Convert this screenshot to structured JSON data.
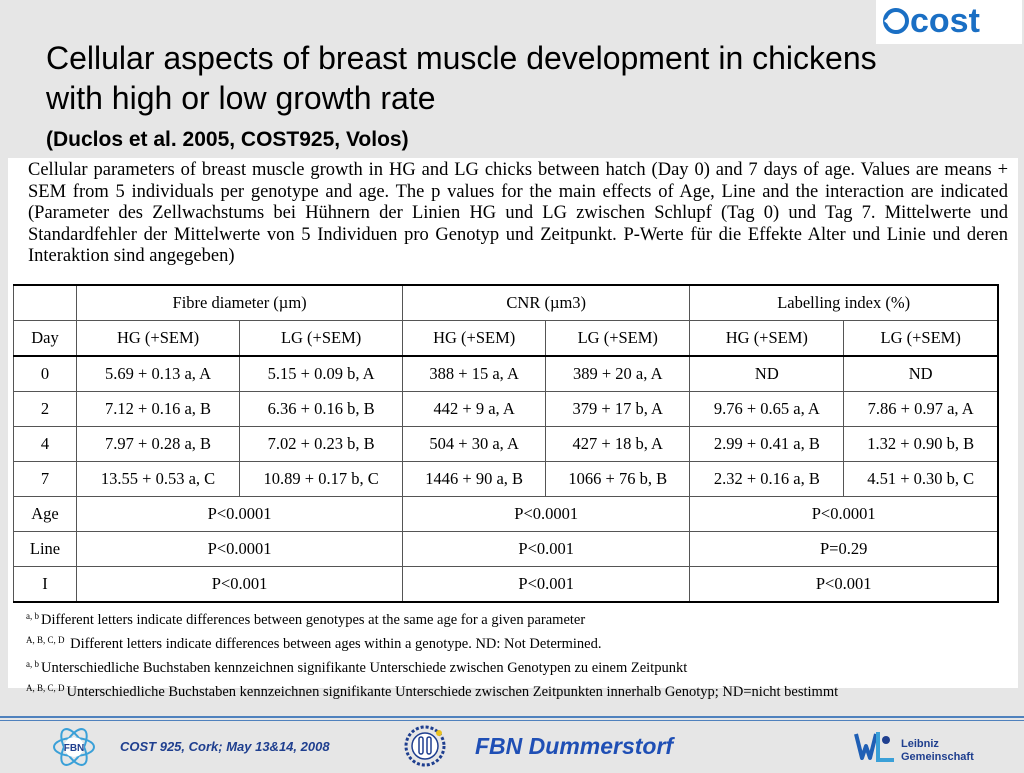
{
  "header": {
    "logo_text": "cost",
    "title": "Cellular aspects of breast muscle development in chickens with high or low growth rate",
    "subtitle": "(Duclos et al. 2005, COST925, Volos)"
  },
  "caption": "Cellular parameters of breast muscle growth in HG and LG chicks between hatch (Day 0) and 7 days of age. Values are means + SEM from 5 individuals per genotype and age. The p values for the main effects of Age, Line and the interaction are indicated (Parameter des Zellwachstums bei Hühnern der Linien HG und LG zwischen Schlupf (Tag 0) und Tag 7. Mittelwerte und Standardfehler der Mittelwerte von 5 Individuen pro Genotyp und Zeitpunkt.  P-Werte für die Effekte Alter und Linie und deren Interaktion sind angegeben)",
  "table": {
    "group_headers": [
      "Fibre diameter (µm)",
      "CNR (µm3)",
      "Labelling index (%)"
    ],
    "col_headers": [
      "Day",
      "HG (+SEM)",
      "LG (+SEM)",
      "HG (+SEM)",
      "LG (+SEM)",
      "HG (+SEM)",
      "LG (+SEM)"
    ],
    "rows": [
      [
        "0",
        "5.69 + 0.13 a, A",
        "5.15 + 0.09 b, A",
        "388 + 15 a, A",
        "389 + 20 a, A",
        "ND",
        "ND"
      ],
      [
        "2",
        "7.12 + 0.16 a, B",
        "6.36 + 0.16 b, B",
        "442 + 9 a, A",
        "379 + 17 b, A",
        "9.76 + 0.65 a, A",
        "7.86 + 0.97 a, A"
      ],
      [
        "4",
        "7.97 + 0.28 a, B",
        "7.02 + 0.23 b, B",
        "504 + 30 a, A",
        "427 + 18 b, A",
        "2.99 + 0.41 a, B",
        "1.32 + 0.90 b, B"
      ],
      [
        "7",
        "13.55 + 0.53 a, C",
        "10.89 + 0.17 b, C",
        "1446 + 90 a, B",
        "1066 + 76 b, B",
        "2.32 + 0.16 a, B",
        "4.51 + 0.30 b, C"
      ]
    ],
    "stats": [
      [
        "Age",
        "P<0.0001",
        "P<0.0001",
        "P<0.0001"
      ],
      [
        "Line",
        "P<0.0001",
        "P<0.001",
        "P=0.29"
      ],
      [
        "I",
        "P<0.001",
        "P<0.001",
        "P<0.001"
      ]
    ]
  },
  "notes": [
    {
      "sup": "a, b",
      "text": "Different letters indicate differences between genotypes at the same age for a given parameter"
    },
    {
      "sup": "A, B, C, D",
      "text": "  Different letters indicate differences between ages within a genotype. ND: Not Determined."
    },
    {
      "sup": "a, b",
      "text": "Unterschiedliche Buchstaben kennzeichnen signifikante Unterschiede zwischen Genotypen zu einem Zeitpunkt"
    },
    {
      "sup": "A, B, C, D",
      "text": "Unterschiedliche Buchstaben kennzeichnen signifikante Unterschiede zwischen Zeitpunkten innerhalb Genotyp; ND=nicht bestimmt"
    }
  ],
  "footer": {
    "event": "COST 925, Cork; May 13&14, 2008",
    "institute": "FBN Dummerstorf",
    "fbn_logo_text": "FBN",
    "leibniz_line1": "Leibniz",
    "leibniz_line2": "Gemeinschaft"
  },
  "colors": {
    "background": "#e6e6e6",
    "footer_rule": "#4f81bd",
    "footer_text": "#1f3f8f",
    "institute_text": "#1f4fb5",
    "cost_logo": "#1a6fc4"
  },
  "icons": [
    "cost-logo",
    "fbn-logo",
    "ring-emblem-icon",
    "leibniz-logo"
  ]
}
